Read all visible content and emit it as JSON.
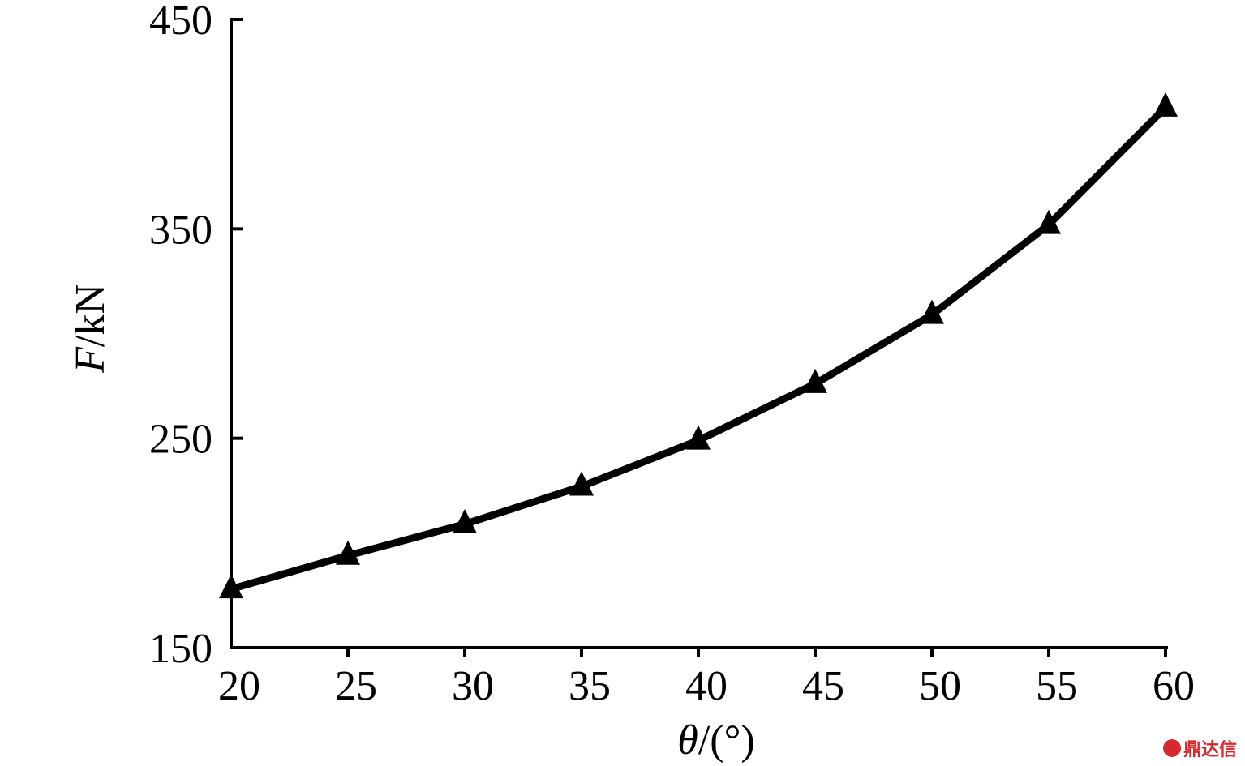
{
  "chart_data": {
    "type": "line",
    "x": [
      20,
      25,
      30,
      35,
      40,
      45,
      50,
      55,
      60
    ],
    "series": [
      {
        "values": [
          178,
          194,
          209,
          227,
          249,
          276,
          309,
          352,
          408
        ],
        "marker": "triangle",
        "color": "#000000"
      }
    ],
    "xlabel": "θ/(°)",
    "ylabel": "F/kN",
    "xlim": [
      20,
      60
    ],
    "ylim": [
      150,
      450
    ],
    "xticks": [
      "20",
      "25",
      "30",
      "35",
      "40",
      "45",
      "50",
      "55",
      "60"
    ],
    "yticks": [
      "150",
      "250",
      "350",
      "450"
    ],
    "grid": false
  },
  "watermark": "鼎达信"
}
